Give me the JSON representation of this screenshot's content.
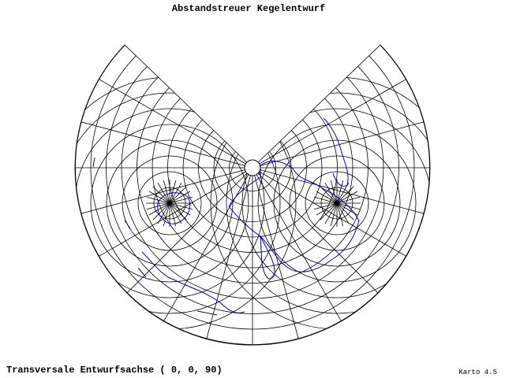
{
  "header": {
    "title": "Abstandstreuer Kegelentwurf"
  },
  "footer": {
    "caption": "Transversale Entwurfsachse ( 0, 0, 90)",
    "version": "Karto 4.5"
  }
}
